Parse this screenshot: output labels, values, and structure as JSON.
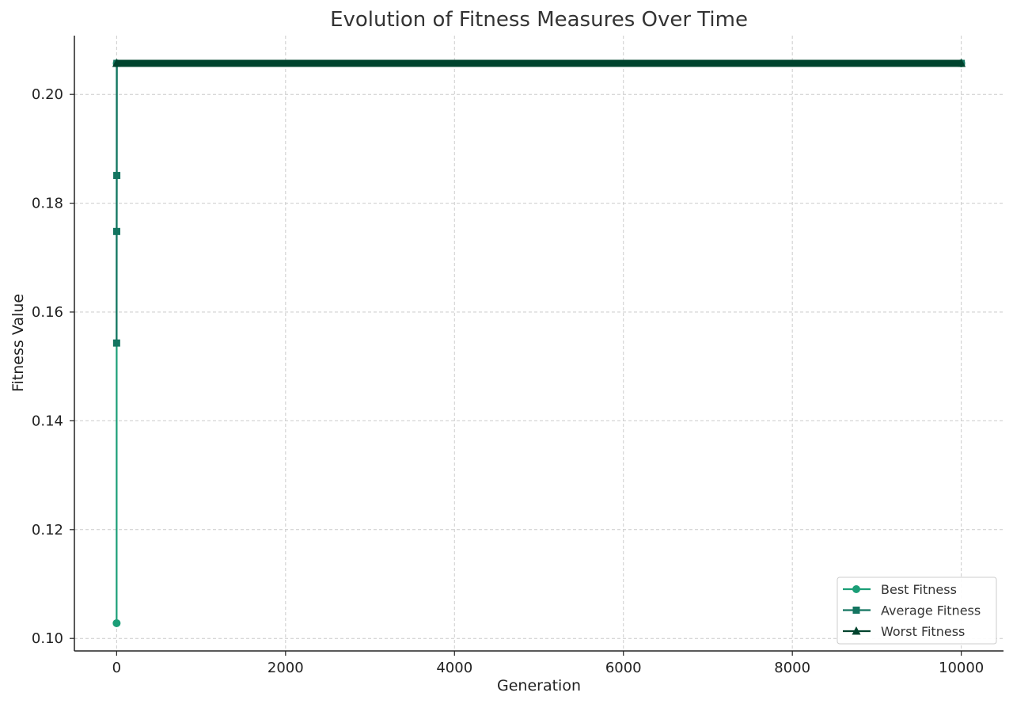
{
  "chart_data": {
    "type": "line",
    "title": "Evolution of Fitness Measures Over Time",
    "xlabel": "Generation",
    "ylabel": "Fitness Value",
    "xlim": [
      -500,
      10500
    ],
    "ylim": [
      0.0977,
      0.2108
    ],
    "xticks": [
      0,
      2000,
      4000,
      6000,
      8000,
      10000
    ],
    "xtick_labels": [
      "0",
      "2000",
      "4000",
      "6000",
      "8000",
      "10000"
    ],
    "yticks": [
      0.1,
      0.12,
      0.14,
      0.16,
      0.18,
      0.2
    ],
    "ytick_labels": [
      "0.10",
      "0.12",
      "0.14",
      "0.16",
      "0.18",
      "0.20"
    ],
    "grid": true,
    "legend_position": "bottom-right",
    "series": [
      {
        "name": "Best Fitness",
        "color": "#1b9e77",
        "marker": "circle",
        "x": [
          0,
          1,
          10000
        ],
        "y": [
          0.1028,
          0.2057,
          0.2057
        ]
      },
      {
        "name": "Average Fitness",
        "color": "#137560",
        "marker": "square",
        "x": [
          0,
          1,
          2,
          3,
          10000
        ],
        "y": [
          0.1543,
          0.1748,
          0.1851,
          0.2057,
          0.2057
        ]
      },
      {
        "name": "Worst Fitness",
        "color": "#00442e",
        "marker": "triangle",
        "x": [
          0,
          10000
        ],
        "y": [
          0.2057,
          0.2057
        ]
      }
    ]
  }
}
